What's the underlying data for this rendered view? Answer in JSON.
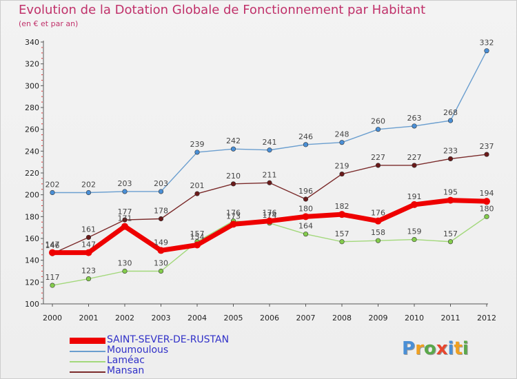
{
  "header": {
    "title": "Evolution de la Dotation Globale de Fonctionnement par Habitant",
    "subtitle": "(en € et par an)"
  },
  "logo": {
    "text": "Proxiti",
    "letters": [
      {
        "ch": "P",
        "color": "#4a8fd6"
      },
      {
        "ch": "r",
        "color": "#f0a020"
      },
      {
        "ch": "o",
        "color": "#5aa84a"
      },
      {
        "ch": "x",
        "color": "#e8462e"
      },
      {
        "ch": "i",
        "color": "#4a8fd6"
      },
      {
        "ch": "t",
        "color": "#f0a020"
      },
      {
        "ch": "i",
        "color": "#5aa84a"
      }
    ]
  },
  "chart_data": {
    "type": "line",
    "x": [
      "2000",
      "2001",
      "2002",
      "2003",
      "2004",
      "2005",
      "2006",
      "2007",
      "2008",
      "2009",
      "2010",
      "2011",
      "2012"
    ],
    "ylim": [
      100,
      340
    ],
    "yticks": [
      "100",
      "120",
      "140",
      "160",
      "180",
      "200",
      "220",
      "240",
      "260",
      "280",
      "300",
      "320",
      "340"
    ],
    "grid": false,
    "legend_position": "bottom-left",
    "series": [
      {
        "name": "Moumoulous",
        "color": "#6a9ecf",
        "point_color": "#4a8fd6",
        "values": [
          202,
          202,
          203,
          203,
          239,
          242,
          241,
          246,
          248,
          260,
          263,
          268,
          332
        ]
      },
      {
        "name": "Laméac",
        "color": "#a2d87a",
        "point_color": "#84cc4c",
        "values": [
          117,
          123,
          130,
          130,
          157,
          176,
          174,
          164,
          157,
          158,
          159,
          157,
          180
        ]
      },
      {
        "name": "Mansan",
        "color": "#7a2a2a",
        "point_color": "#6a1a1a",
        "values": [
          146,
          161,
          177,
          178,
          201,
          210,
          211,
          196,
          219,
          227,
          227,
          233,
          237
        ]
      },
      {
        "name": "SAINT-SEVER-DE-RUSTAN",
        "color": "#ee0000",
        "point_color": "#ee0000",
        "values": [
          147,
          147,
          171,
          149,
          154,
          173,
          176,
          180,
          182,
          176,
          191,
          195,
          194
        ]
      }
    ],
    "legend_order": [
      "SAINT-SEVER-DE-RUSTAN",
      "Moumoulous",
      "Laméac",
      "Mansan"
    ]
  }
}
